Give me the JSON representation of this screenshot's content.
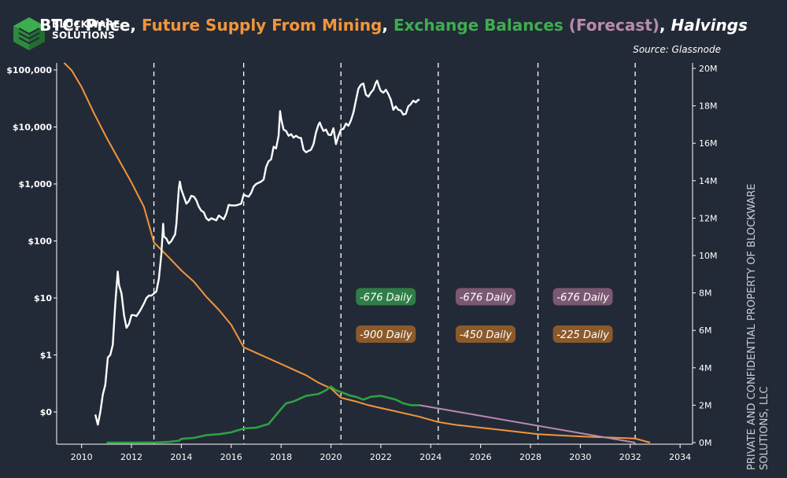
{
  "logo": {
    "line1": "BLOCKWARE",
    "line2": "SOLUTIONS"
  },
  "title": {
    "parts": [
      {
        "text": "BTC: Price",
        "color": "#ffffff"
      },
      {
        "text": "Future Supply From Mining",
        "color": "#f2953a"
      },
      {
        "text": "Exchange Balances",
        "color": "#3dae4f"
      },
      {
        "text": "(Forecast)",
        "color": "#b98ab0"
      },
      {
        "text": "Halvings",
        "color": "#ffffff"
      }
    ]
  },
  "source": "Source: Glassnode",
  "side_note": {
    "line1": "PRIVATE AND CONFIDENTIAL PROPERTY OF BLOCKWARE",
    "line2": "SOLUTIONS, LLC"
  },
  "colors": {
    "background": "#232a37",
    "price": "#ffffff",
    "supply": "#f2953a",
    "balances": "#2fa043",
    "forecast": "#b98ab0",
    "axis": "#ffffff"
  },
  "chart_data": {
    "type": "line",
    "x_axis": {
      "range": [
        2009,
        2034.5
      ],
      "tick_labels": [
        "2010",
        "2012",
        "2014",
        "2016",
        "2018",
        "2020",
        "2022",
        "2024",
        "2026",
        "2028",
        "2030",
        "2032",
        "2034"
      ]
    },
    "y_left": {
      "scale": "log",
      "tick_labels": [
        "$100,000",
        "$10,000",
        "$1,000",
        "$100",
        "$10",
        "$1",
        "$0"
      ]
    },
    "y_right": {
      "range": [
        0,
        20000000
      ],
      "tick_labels": [
        "0M",
        "2M",
        "4M",
        "6M",
        "8M",
        "10M",
        "12M",
        "14M",
        "16M",
        "18M",
        "20M"
      ]
    },
    "halvings": [
      2012.9,
      2016.5,
      2020.4,
      2024.3,
      2028.3,
      2032.2
    ],
    "series": [
      {
        "name": "Price",
        "axis": "left",
        "points": [
          [
            2010.55,
            0.09
          ],
          [
            2010.65,
            0.06
          ],
          [
            2010.75,
            0.1
          ],
          [
            2010.85,
            0.2
          ],
          [
            2010.95,
            0.3
          ],
          [
            2011.05,
            0.9
          ],
          [
            2011.15,
            1.0
          ],
          [
            2011.25,
            1.5
          ],
          [
            2011.35,
            8
          ],
          [
            2011.45,
            29
          ],
          [
            2011.5,
            17
          ],
          [
            2011.6,
            12
          ],
          [
            2011.7,
            5
          ],
          [
            2011.8,
            3
          ],
          [
            2011.9,
            3.5
          ],
          [
            2012.0,
            5
          ],
          [
            2012.1,
            5
          ],
          [
            2012.2,
            4.8
          ],
          [
            2012.35,
            6
          ],
          [
            2012.5,
            8
          ],
          [
            2012.6,
            10
          ],
          [
            2012.7,
            11
          ],
          [
            2012.8,
            11
          ],
          [
            2012.9,
            12
          ],
          [
            2013.0,
            13
          ],
          [
            2013.1,
            22
          ],
          [
            2013.2,
            60
          ],
          [
            2013.27,
            200
          ],
          [
            2013.3,
            120
          ],
          [
            2013.4,
            110
          ],
          [
            2013.5,
            90
          ],
          [
            2013.6,
            100
          ],
          [
            2013.7,
            120
          ],
          [
            2013.75,
            130
          ],
          [
            2013.8,
            200
          ],
          [
            2013.9,
            850
          ],
          [
            2013.94,
            1100
          ],
          [
            2014.0,
            800
          ],
          [
            2014.1,
            600
          ],
          [
            2014.2,
            450
          ],
          [
            2014.3,
            500
          ],
          [
            2014.4,
            620
          ],
          [
            2014.5,
            600
          ],
          [
            2014.6,
            520
          ],
          [
            2014.7,
            400
          ],
          [
            2014.8,
            340
          ],
          [
            2014.9,
            320
          ],
          [
            2015.0,
            250
          ],
          [
            2015.1,
            230
          ],
          [
            2015.2,
            250
          ],
          [
            2015.3,
            240
          ],
          [
            2015.4,
            230
          ],
          [
            2015.5,
            280
          ],
          [
            2015.6,
            260
          ],
          [
            2015.7,
            240
          ],
          [
            2015.8,
            300
          ],
          [
            2015.9,
            430
          ],
          [
            2016.0,
            420
          ],
          [
            2016.2,
            420
          ],
          [
            2016.4,
            450
          ],
          [
            2016.5,
            650
          ],
          [
            2016.6,
            620
          ],
          [
            2016.7,
            600
          ],
          [
            2016.8,
            700
          ],
          [
            2016.9,
            900
          ],
          [
            2017.0,
            1000
          ],
          [
            2017.2,
            1100
          ],
          [
            2017.3,
            1200
          ],
          [
            2017.4,
            2000
          ],
          [
            2017.5,
            2500
          ],
          [
            2017.6,
            2700
          ],
          [
            2017.7,
            4500
          ],
          [
            2017.8,
            4200
          ],
          [
            2017.9,
            7000
          ],
          [
            2017.96,
            19000
          ],
          [
            2018.0,
            14000
          ],
          [
            2018.1,
            9000
          ],
          [
            2018.2,
            8500
          ],
          [
            2018.3,
            7000
          ],
          [
            2018.4,
            7500
          ],
          [
            2018.5,
            6500
          ],
          [
            2018.6,
            7000
          ],
          [
            2018.7,
            6500
          ],
          [
            2018.8,
            6400
          ],
          [
            2018.9,
            4000
          ],
          [
            2019.0,
            3600
          ],
          [
            2019.1,
            3800
          ],
          [
            2019.2,
            4000
          ],
          [
            2019.3,
            5000
          ],
          [
            2019.4,
            8000
          ],
          [
            2019.5,
            11000
          ],
          [
            2019.55,
            12000
          ],
          [
            2019.6,
            10500
          ],
          [
            2019.7,
            8500
          ],
          [
            2019.8,
            9000
          ],
          [
            2019.9,
            7300
          ],
          [
            2020.0,
            7200
          ],
          [
            2020.1,
            9500
          ],
          [
            2020.2,
            5000
          ],
          [
            2020.3,
            7000
          ],
          [
            2020.4,
            9000
          ],
          [
            2020.5,
            9300
          ],
          [
            2020.6,
            11500
          ],
          [
            2020.7,
            10500
          ],
          [
            2020.8,
            13000
          ],
          [
            2020.9,
            18000
          ],
          [
            2021.0,
            29000
          ],
          [
            2021.1,
            47000
          ],
          [
            2021.2,
            55000
          ],
          [
            2021.3,
            58000
          ],
          [
            2021.4,
            37000
          ],
          [
            2021.5,
            34000
          ],
          [
            2021.6,
            40000
          ],
          [
            2021.7,
            45000
          ],
          [
            2021.8,
            60000
          ],
          [
            2021.85,
            65000
          ],
          [
            2021.95,
            48000
          ],
          [
            2022.0,
            43000
          ],
          [
            2022.1,
            40000
          ],
          [
            2022.2,
            45000
          ],
          [
            2022.3,
            38000
          ],
          [
            2022.4,
            30000
          ],
          [
            2022.5,
            20000
          ],
          [
            2022.6,
            23000
          ],
          [
            2022.7,
            20000
          ],
          [
            2022.8,
            19500
          ],
          [
            2022.9,
            16500
          ],
          [
            2023.0,
            17000
          ],
          [
            2023.1,
            23000
          ],
          [
            2023.2,
            25000
          ],
          [
            2023.3,
            29000
          ],
          [
            2023.4,
            27000
          ],
          [
            2023.5,
            30000
          ],
          [
            2023.55,
            29500
          ]
        ]
      },
      {
        "name": "Future Supply From Mining",
        "axis": "right",
        "points": [
          [
            2009.3,
            20500000
          ],
          [
            2009.6,
            19900000
          ],
          [
            2010.0,
            19000000
          ],
          [
            2010.5,
            17600000
          ],
          [
            2011.0,
            16300000
          ],
          [
            2011.5,
            15100000
          ],
          [
            2012.0,
            13900000
          ],
          [
            2012.5,
            12600000
          ],
          [
            2012.9,
            10700000
          ],
          [
            2013.5,
            9900000
          ],
          [
            2014.0,
            9200000
          ],
          [
            2014.5,
            8600000
          ],
          [
            2015.0,
            7800000
          ],
          [
            2015.5,
            7100000
          ],
          [
            2016.0,
            6300000
          ],
          [
            2016.5,
            5100000
          ],
          [
            2017.0,
            4800000
          ],
          [
            2017.5,
            4500000
          ],
          [
            2018.0,
            4200000
          ],
          [
            2018.5,
            3900000
          ],
          [
            2019.0,
            3600000
          ],
          [
            2019.5,
            3200000
          ],
          [
            2020.0,
            2900000
          ],
          [
            2020.4,
            2400000
          ],
          [
            2021.0,
            2200000
          ],
          [
            2021.5,
            2000000
          ],
          [
            2022.0,
            1850000
          ],
          [
            2022.5,
            1700000
          ],
          [
            2023.0,
            1550000
          ],
          [
            2023.5,
            1400000
          ],
          [
            2024.3,
            1100000
          ],
          [
            2025.0,
            950000
          ],
          [
            2026.0,
            800000
          ],
          [
            2027.0,
            650000
          ],
          [
            2028.3,
            450000
          ],
          [
            2029.0,
            400000
          ],
          [
            2030.0,
            330000
          ],
          [
            2031.0,
            280000
          ],
          [
            2032.2,
            220000
          ],
          [
            2032.8,
            0
          ]
        ]
      },
      {
        "name": "Exchange Balances",
        "axis": "right",
        "points": [
          [
            2011.0,
            0
          ],
          [
            2012.0,
            0
          ],
          [
            2013.0,
            10000
          ],
          [
            2013.5,
            40000
          ],
          [
            2013.9,
            100000
          ],
          [
            2014.0,
            200000
          ],
          [
            2014.5,
            250000
          ],
          [
            2015.0,
            400000
          ],
          [
            2015.5,
            450000
          ],
          [
            2016.0,
            550000
          ],
          [
            2016.5,
            750000
          ],
          [
            2017.0,
            800000
          ],
          [
            2017.5,
            1000000
          ],
          [
            2018.0,
            1800000
          ],
          [
            2018.2,
            2100000
          ],
          [
            2018.5,
            2200000
          ],
          [
            2019.0,
            2500000
          ],
          [
            2019.5,
            2600000
          ],
          [
            2019.8,
            2800000
          ],
          [
            2020.0,
            3000000
          ],
          [
            2020.2,
            2800000
          ],
          [
            2020.5,
            2650000
          ],
          [
            2020.8,
            2500000
          ],
          [
            2021.0,
            2450000
          ],
          [
            2021.3,
            2300000
          ],
          [
            2021.6,
            2450000
          ],
          [
            2022.0,
            2500000
          ],
          [
            2022.3,
            2400000
          ],
          [
            2022.6,
            2300000
          ],
          [
            2022.9,
            2100000
          ],
          [
            2023.2,
            2000000
          ],
          [
            2023.55,
            2000000
          ]
        ]
      },
      {
        "name": "Exchange Balances (Forecast)",
        "axis": "right",
        "points": [
          [
            2023.55,
            2000000
          ],
          [
            2032.2,
            0
          ]
        ]
      }
    ],
    "annotations": [
      {
        "text": "-676 Daily",
        "color": "#2f7d47",
        "x": 2022.2,
        "y": 7800000
      },
      {
        "text": "-676 Daily",
        "color": "#7b5872",
        "x": 2026.2,
        "y": 7800000
      },
      {
        "text": "-676 Daily",
        "color": "#7b5872",
        "x": 2030.1,
        "y": 7800000
      },
      {
        "text": "-900 Daily",
        "color": "#8b5a2b",
        "x": 2022.2,
        "y": 5800000
      },
      {
        "text": "-450 Daily",
        "color": "#8b5a2b",
        "x": 2026.2,
        "y": 5800000
      },
      {
        "text": "-225 Daily",
        "color": "#8b5a2b",
        "x": 2030.1,
        "y": 5800000
      }
    ]
  }
}
